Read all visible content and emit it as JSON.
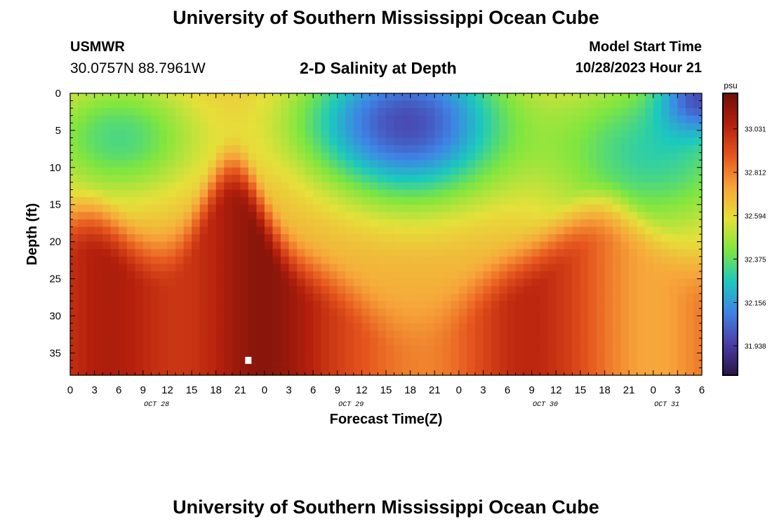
{
  "header": {
    "title": "University of Southern Mississippi Ocean Cube",
    "station": "USMWR",
    "coordinates": "30.0757N  88.7961W",
    "subtitle": "2-D Salinity at Depth",
    "model_start_label": "Model Start Time",
    "model_start_value": "10/28/2023 Hour 21"
  },
  "footer": {
    "title": "University of Southern Mississippi Ocean Cube"
  },
  "chart_data": {
    "type": "heatmap",
    "title": "2-D Salinity at Depth",
    "xlabel": "Forecast Time(Z)",
    "ylabel": "Depth (ft)",
    "x_tick_labels": [
      "0",
      "3",
      "6",
      "9",
      "12",
      "15",
      "18",
      "21",
      "0",
      "3",
      "6",
      "9",
      "12",
      "15",
      "18",
      "21",
      "0",
      "3",
      "6",
      "9",
      "12",
      "15",
      "18",
      "21",
      "0",
      "3",
      "6"
    ],
    "date_labels": [
      {
        "label": "OCT 28",
        "tick_index": 4
      },
      {
        "label": "OCT 29",
        "tick_index": 12
      },
      {
        "label": "OCT 30",
        "tick_index": 20
      },
      {
        "label": "OCT 31",
        "tick_index": 25
      }
    ],
    "y_ticks": [
      0,
      5,
      10,
      15,
      20,
      25,
      30,
      35
    ],
    "ylim": [
      38,
      0
    ],
    "colorbar": {
      "unit": "psu",
      "tick_labels": [
        "33.031",
        "32.812",
        "32.594",
        "32.375",
        "32.156",
        "31.938"
      ],
      "tick_values": [
        33.031,
        32.812,
        32.594,
        32.375,
        32.156,
        31.938
      ],
      "range": [
        31.79,
        33.21
      ],
      "colors": [
        "#2b1446",
        "#4a3ea7",
        "#3f83e6",
        "#1cc9be",
        "#7fe63f",
        "#e6e03a",
        "#f7a53a",
        "#e6561e",
        "#b5200c",
        "#6e0f0a"
      ]
    },
    "marker": {
      "time_hours": 22,
      "depth_ft": 36
    }
  }
}
